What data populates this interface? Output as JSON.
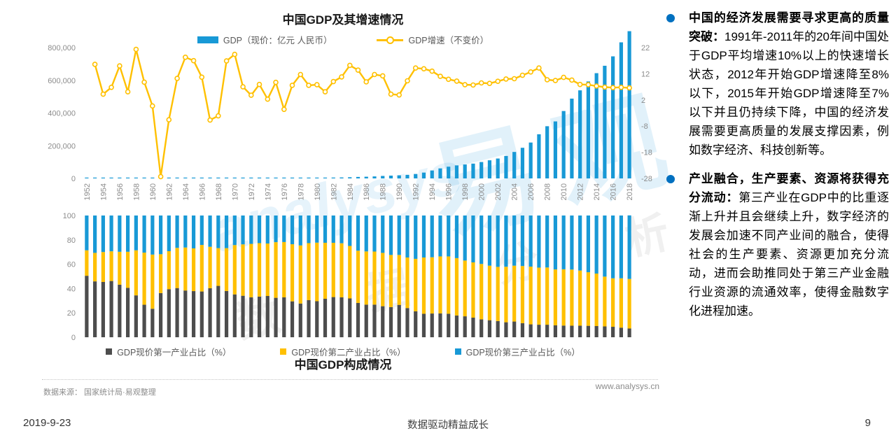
{
  "page": {
    "date": "2019-9-23",
    "footer_center": "数据驱动精益成长",
    "page_number": "9",
    "source": "数据来源： 国家统计局·易观整理",
    "website": "www.analysys.cn",
    "watermark": {
      "cn": "易观",
      "en": "analysys",
      "tagline": "数 据 分 析"
    }
  },
  "right_panel": {
    "accent": "#0070C0",
    "bullets": [
      {
        "lead": "中国的经济发展需要寻求更高的质量突破：",
        "text": "1991年-2011年的20年间中国处于GDP平均增速10%以上的快速增长状态，2012年开始GDP增速降至8%以下，2015年开始GDP增速降至7%以下并且仍持续下降，中国的经济发展需要更高质量的发展支撑因素，例如数字经济、科技创新等。"
      },
      {
        "lead": "产业融合，生产要素、资源将获得充分流动：",
        "text": "第三产业在GDP中的比重逐渐上升并且会继续上升，数字经济的发展会加速不同产业间的融合，使得社会的生产要素、资源更加充分流动，进而会助推同处于第三产业金融行业资源的流通效率，使得金融数字化进程加速。"
      }
    ]
  },
  "chart_data": [
    {
      "type": "combo-bar-line",
      "title": "中国GDP及其增速情况",
      "years": [
        1952,
        1953,
        1954,
        1955,
        1956,
        1957,
        1958,
        1959,
        1960,
        1961,
        1962,
        1963,
        1964,
        1965,
        1966,
        1967,
        1968,
        1969,
        1970,
        1971,
        1972,
        1973,
        1974,
        1975,
        1976,
        1977,
        1978,
        1979,
        1980,
        1981,
        1982,
        1983,
        1984,
        1985,
        1986,
        1987,
        1988,
        1989,
        1990,
        1991,
        1992,
        1993,
        1994,
        1995,
        1996,
        1997,
        1998,
        1999,
        2000,
        2001,
        2002,
        2003,
        2004,
        2005,
        2006,
        2007,
        2008,
        2009,
        2010,
        2011,
        2012,
        2013,
        2014,
        2015,
        2016,
        2017,
        2018
      ],
      "x_ticks": [
        1952,
        1954,
        1956,
        1958,
        1960,
        1962,
        1964,
        1966,
        1968,
        1970,
        1972,
        1974,
        1976,
        1978,
        1980,
        1982,
        1984,
        1986,
        1988,
        1990,
        1992,
        1994,
        1996,
        1998,
        2000,
        2002,
        2004,
        2006,
        2008,
        2010,
        2012,
        2014,
        2016,
        2018
      ],
      "left_axis": {
        "min": 0,
        "max": 800000,
        "ticks": [
          "0",
          "200,000",
          "400,000",
          "600,000",
          "800,000"
        ]
      },
      "right_axis": {
        "min": -28,
        "max": 22,
        "ticks": [
          22,
          12,
          2,
          -8,
          -18,
          -28
        ]
      },
      "series": [
        {
          "name": "GDP（现价：亿元 人民币）",
          "type": "bar",
          "axis": "left",
          "color": "#1899D6",
          "values": [
            679,
            824,
            859,
            911,
            1029,
            1069,
            1308,
            1440,
            1457,
            1221,
            1150,
            1234,
            1455,
            1717,
            1869,
            1774,
            1724,
            1938,
            2253,
            2426,
            2518,
            2721,
            2790,
            2998,
            2944,
            3202,
            3679,
            4101,
            4588,
            4936,
            5373,
            6021,
            7279,
            9099,
            10376,
            12175,
            15180,
            17180,
            18873,
            22006,
            27195,
            35673,
            48638,
            61340,
            71814,
            79715,
            85196,
            90564,
            100280,
            110863,
            121717,
            137422,
            161840,
            187319,
            219439,
            270092,
            319245,
            348518,
            412119,
            487940,
            538580,
            592963,
            643563,
            688858,
            746395,
            832036,
            900309
          ]
        },
        {
          "name": "GDP增速（不变价）",
          "type": "line",
          "axis": "right",
          "color": "#FFC000",
          "values": [
            null,
            15.6,
            4.2,
            6.8,
            15.0,
            5.1,
            21.3,
            8.8,
            -0.3,
            -27.3,
            -5.6,
            10.2,
            18.3,
            17.0,
            10.7,
            -5.7,
            -4.1,
            16.9,
            19.4,
            7.0,
            3.8,
            7.9,
            2.3,
            8.7,
            -1.6,
            7.6,
            11.7,
            7.6,
            7.8,
            5.1,
            9.0,
            10.8,
            15.2,
            13.4,
            8.9,
            11.7,
            11.2,
            4.2,
            3.9,
            9.3,
            14.2,
            13.9,
            13.0,
            11.0,
            9.9,
            9.2,
            7.8,
            7.7,
            8.5,
            8.3,
            9.1,
            10.0,
            10.1,
            11.4,
            12.7,
            14.2,
            9.7,
            9.4,
            10.6,
            9.6,
            7.9,
            7.8,
            7.3,
            6.9,
            6.7,
            6.8,
            6.6
          ]
        }
      ]
    },
    {
      "type": "stacked-bar",
      "title": "中国GDP构成情况",
      "ylim": [
        0,
        100
      ],
      "yticks": [
        0,
        20,
        40,
        60,
        80,
        100
      ],
      "series": [
        {
          "name": "GDP现价第一产业占比（%）",
          "color": "#4D4D4D",
          "values": [
            50.5,
            45.9,
            45.4,
            46.2,
            43.2,
            40.6,
            34.4,
            26.7,
            23.4,
            36.3,
            39.5,
            40.4,
            38.4,
            37.9,
            37.6,
            40.3,
            42.2,
            38.0,
            35.2,
            34.1,
            32.8,
            33.4,
            33.9,
            32.4,
            32.8,
            29.5,
            27.7,
            30.5,
            29.6,
            31.6,
            33.0,
            32.8,
            31.9,
            28.2,
            26.8,
            26.8,
            25.5,
            24.8,
            26.6,
            24.0,
            21.3,
            19.3,
            19.5,
            19.6,
            19.3,
            17.9,
            17.2,
            16.1,
            14.7,
            14.0,
            13.3,
            12.3,
            12.9,
            11.6,
            10.6,
            10.3,
            10.3,
            9.8,
            9.6,
            9.5,
            9.5,
            9.4,
            9.2,
            8.9,
            8.6,
            7.9,
            7.2
          ]
        },
        {
          "name": "GDP现价第二产业占比（%）",
          "color": "#FFC000",
          "values": [
            20.9,
            23.4,
            24.6,
            24.4,
            27.0,
            29.6,
            37.0,
            42.8,
            44.5,
            31.9,
            31.2,
            33.0,
            35.3,
            35.1,
            38.2,
            34.0,
            31.0,
            35.2,
            40.5,
            42.2,
            43.9,
            43.9,
            43.1,
            45.7,
            45.4,
            46.9,
            47.7,
            46.8,
            48.1,
            46.0,
            44.6,
            44.4,
            43.1,
            42.9,
            43.7,
            43.6,
            43.8,
            42.8,
            41.0,
            41.5,
            43.1,
            46.2,
            46.2,
            46.8,
            47.1,
            47.1,
            45.8,
            45.4,
            45.5,
            44.8,
            44.5,
            45.6,
            45.9,
            46.9,
            47.4,
            46.9,
            47.0,
            45.9,
            46.2,
            46.1,
            45.3,
            44.0,
            43.1,
            40.9,
            39.8,
            40.5,
            40.7
          ]
        },
        {
          "name": "GDP现价第三产业占比（%）",
          "color": "#1899D6",
          "values": [
            28.6,
            30.7,
            30.0,
            29.4,
            29.8,
            29.8,
            28.6,
            30.5,
            32.1,
            31.8,
            29.3,
            26.6,
            26.3,
            27.0,
            24.2,
            25.7,
            26.8,
            26.8,
            24.3,
            23.7,
            23.3,
            22.7,
            23.0,
            21.9,
            21.8,
            23.6,
            24.6,
            22.7,
            22.3,
            22.4,
            22.4,
            22.8,
            25.0,
            28.9,
            29.5,
            29.6,
            30.7,
            32.4,
            32.4,
            34.5,
            35.6,
            34.5,
            34.3,
            33.6,
            33.6,
            35.0,
            37.0,
            38.5,
            39.8,
            41.2,
            42.2,
            42.1,
            41.2,
            41.5,
            42.0,
            42.8,
            42.7,
            44.3,
            44.2,
            44.4,
            45.2,
            46.6,
            47.7,
            50.2,
            51.6,
            51.6,
            52.2
          ]
        }
      ]
    }
  ]
}
